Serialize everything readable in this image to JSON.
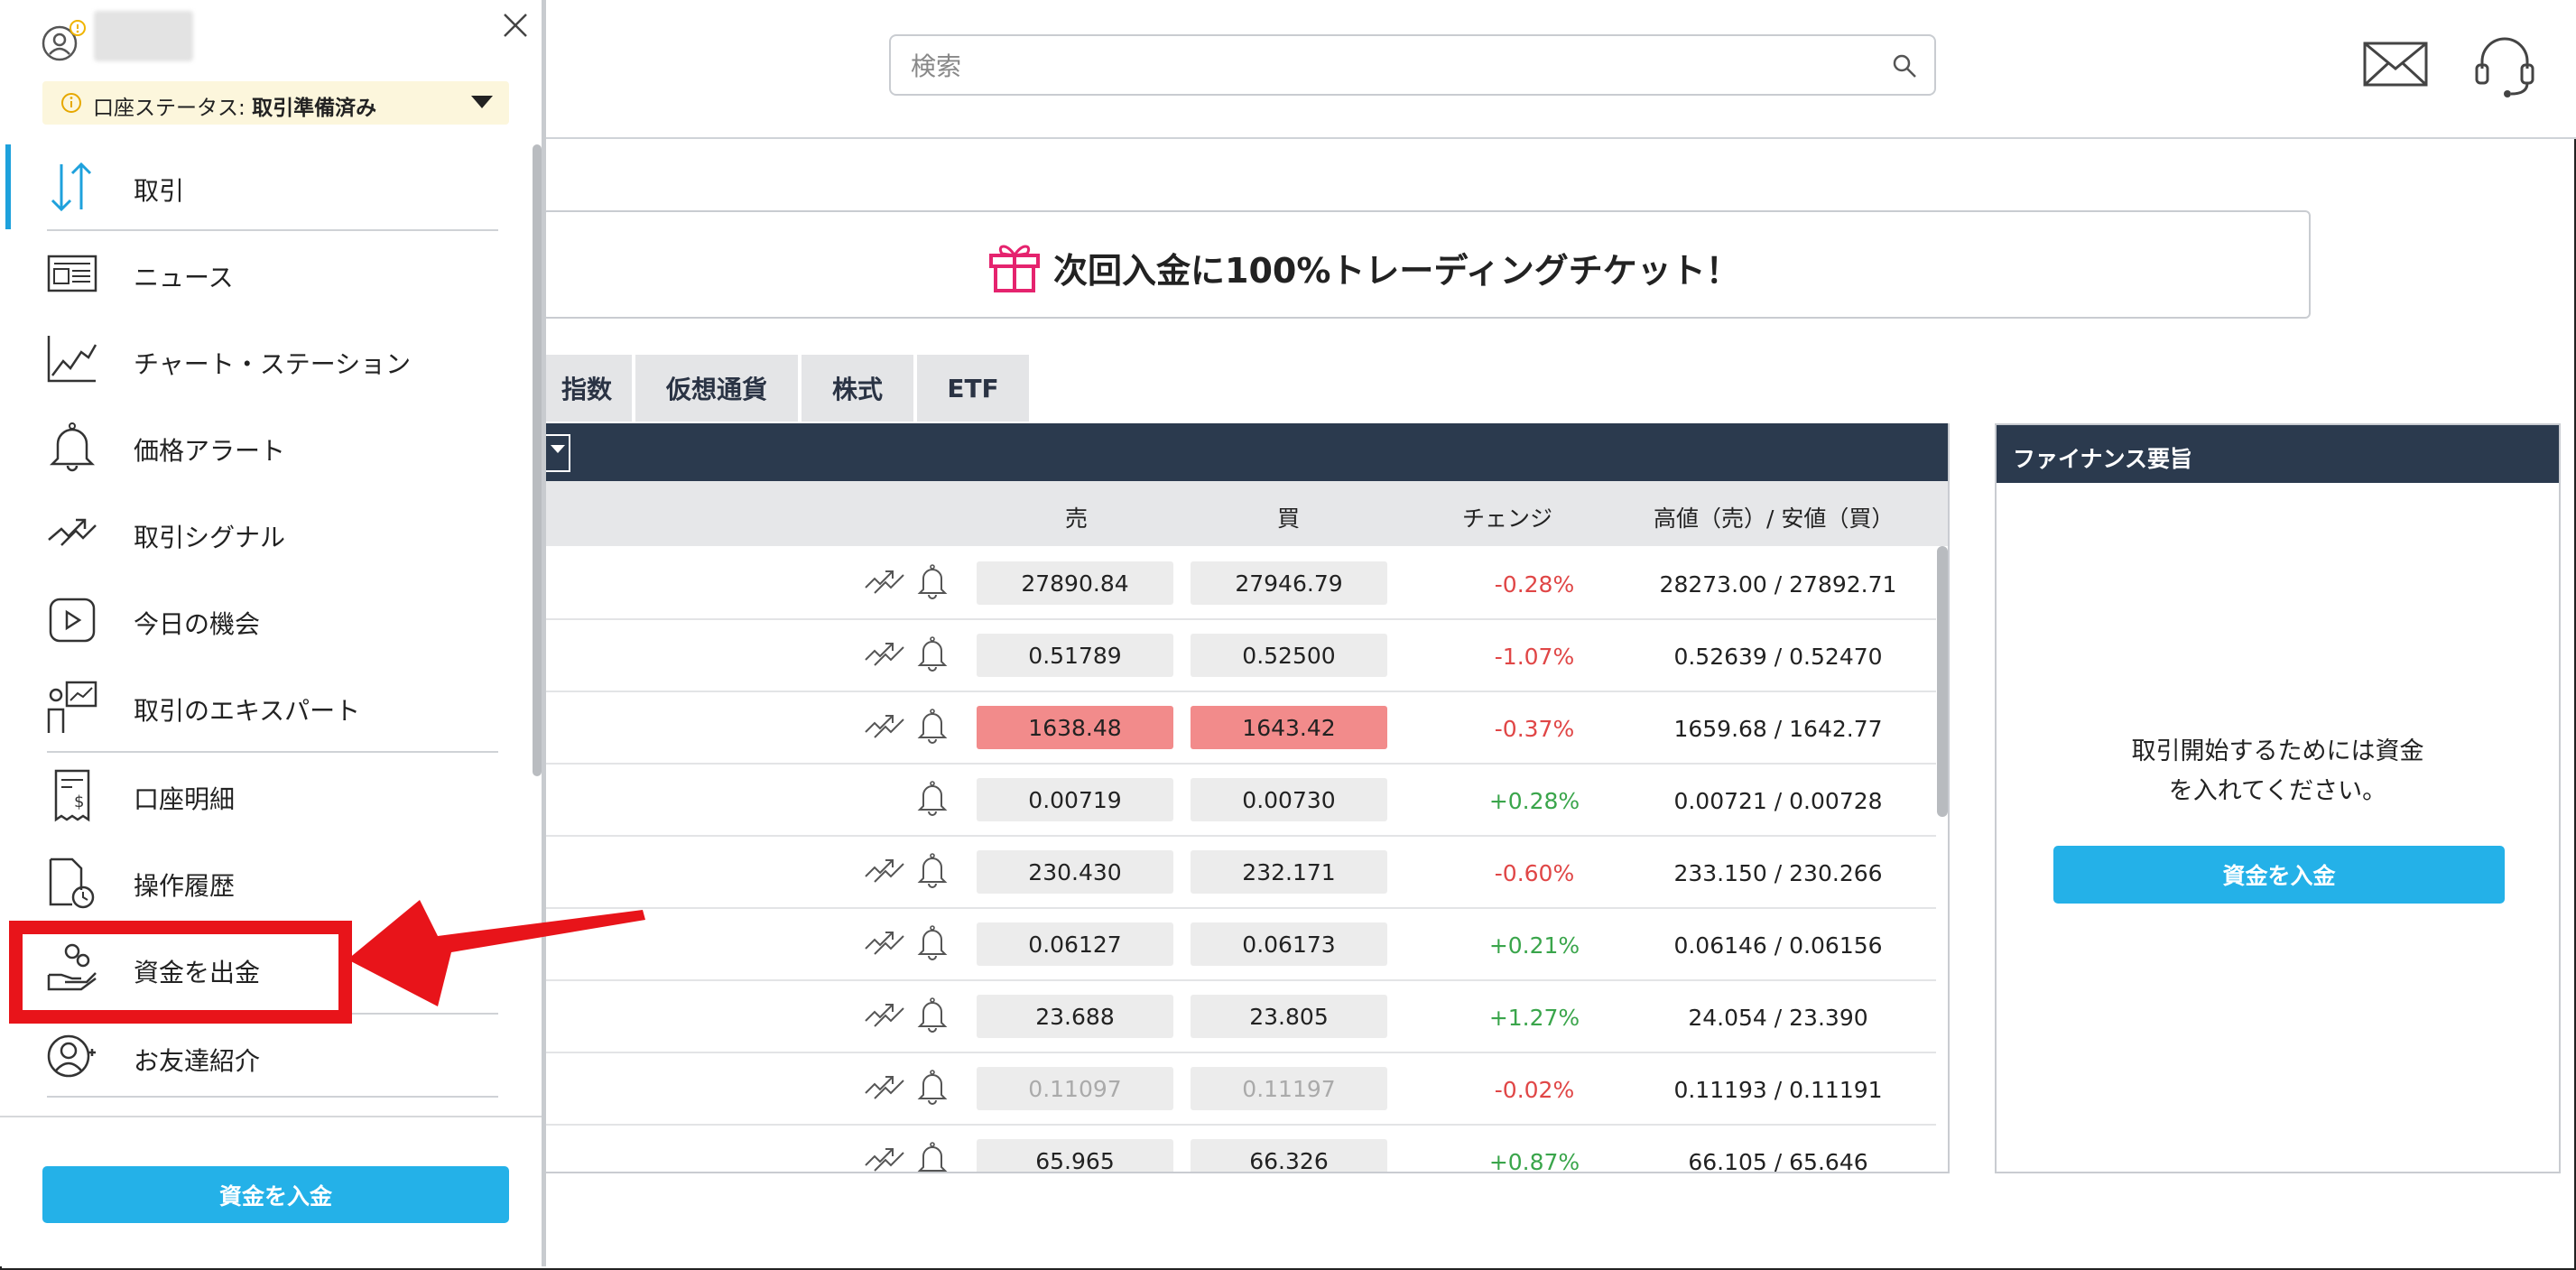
{
  "header": {
    "search_placeholder": "検索"
  },
  "side_menu": {
    "status_label": "口座ステータス:",
    "status_value": "取引準備済み",
    "items": [
      {
        "label": "取引",
        "icon": "trade-arrows-icon"
      },
      {
        "label": "ニュース",
        "icon": "newspaper-icon"
      },
      {
        "label": "チャート・ステーション",
        "icon": "chart-line-icon"
      },
      {
        "label": "価格アラート",
        "icon": "bell-icon"
      },
      {
        "label": "取引シグナル",
        "icon": "signal-icon"
      },
      {
        "label": "今日の機会",
        "icon": "play-icon"
      },
      {
        "label": "取引のエキスパート",
        "icon": "expert-icon"
      },
      {
        "label": "口座明細",
        "icon": "statement-icon"
      },
      {
        "label": "操作履歴",
        "icon": "history-icon"
      },
      {
        "label": "資金を出金",
        "icon": "withdraw-icon"
      },
      {
        "label": "お友達紹介",
        "icon": "referral-icon"
      }
    ],
    "deposit_button": "資金を入金"
  },
  "banner": {
    "text": "次回入金に100%トレーディングチケット！"
  },
  "tabs": [
    "指数",
    "仮想通貨",
    "株式",
    "ETF"
  ],
  "table": {
    "headers": {
      "sell": "売",
      "buy": "買",
      "change": "チェンジ",
      "high_low": "高値（売）/ 安値（買）"
    },
    "rows": [
      {
        "sell": "27890.84",
        "buy": "27946.79",
        "change": "-0.28%",
        "high_low": "28273.00 / 27892.71",
        "dir": "neg",
        "signal": true,
        "style": ""
      },
      {
        "sell": "0.51789",
        "buy": "0.52500",
        "change": "-1.07%",
        "high_low": "0.52639 / 0.52470",
        "dir": "neg",
        "signal": true,
        "style": ""
      },
      {
        "sell": "1638.48",
        "buy": "1643.42",
        "change": "-0.37%",
        "high_low": "1659.68 / 1642.77",
        "dir": "neg",
        "signal": true,
        "style": "hot"
      },
      {
        "sell": "0.00719",
        "buy": "0.00730",
        "change": "+0.28%",
        "high_low": "0.00721 / 0.00728",
        "dir": "pos",
        "signal": false,
        "style": ""
      },
      {
        "sell": "230.430",
        "buy": "232.171",
        "change": "-0.60%",
        "high_low": "233.150 / 230.266",
        "dir": "neg",
        "signal": true,
        "style": ""
      },
      {
        "sell": "0.06127",
        "buy": "0.06173",
        "change": "+0.21%",
        "high_low": "0.06146 / 0.06156",
        "dir": "pos",
        "signal": true,
        "style": ""
      },
      {
        "sell": "23.688",
        "buy": "23.805",
        "change": "+1.27%",
        "high_low": "24.054 / 23.390",
        "dir": "pos",
        "signal": true,
        "style": ""
      },
      {
        "sell": "0.11097",
        "buy": "0.11197",
        "change": "-0.02%",
        "high_low": "0.11193 / 0.11191",
        "dir": "neg",
        "signal": true,
        "style": "dim"
      },
      {
        "sell": "65.965",
        "buy": "66.326",
        "change": "+0.87%",
        "high_low": "66.105 / 65.646",
        "dir": "pos",
        "signal": true,
        "style": ""
      }
    ]
  },
  "finance": {
    "title": "ファイナンス要旨",
    "message_line1": "取引開始するためには資金",
    "message_line2": "を入れてください。",
    "deposit_button": "資金を入金"
  },
  "colors": {
    "accent": "#24b1e8",
    "header_dark": "#2b3a4e",
    "negative": "#e04646",
    "positive": "#3aa54b",
    "annotation": "#e8141a"
  }
}
